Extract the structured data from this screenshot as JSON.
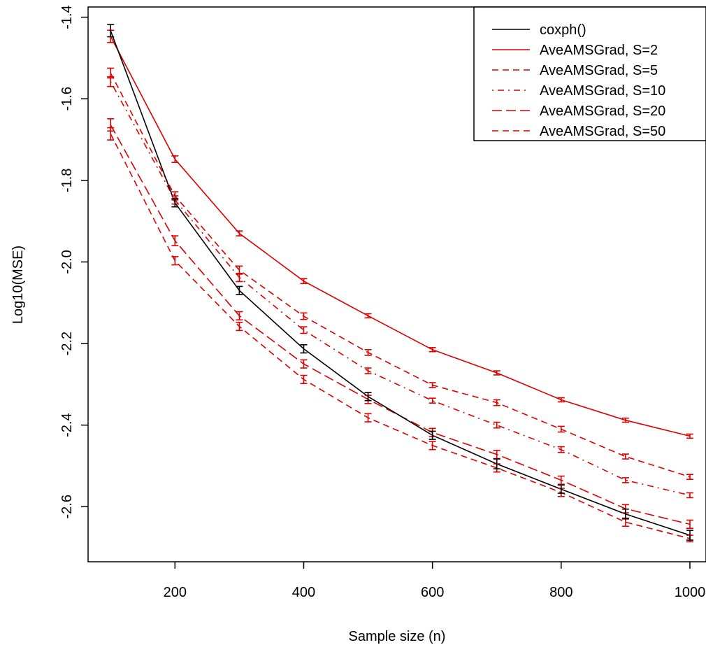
{
  "chart_data": {
    "type": "line",
    "title": "",
    "xlabel": "Sample size (n)",
    "ylabel": "Log10(MSE)",
    "xlim": [
      65,
      1025
    ],
    "ylim": [
      -2.735,
      -1.375
    ],
    "x_ticks": [
      200,
      400,
      600,
      800,
      1000
    ],
    "x_tick_labels": [
      "200",
      "400",
      "600",
      "800",
      "1000"
    ],
    "y_ticks": [
      -1.4,
      -1.6,
      -1.8,
      -2.0,
      -2.2,
      -2.4,
      -2.6
    ],
    "y_tick_labels": [
      "-1.4",
      "-1.6",
      "-1.8",
      "-2.0",
      "-2.2",
      "-2.4",
      "-2.6"
    ],
    "grid": false,
    "legend_position": "top-right",
    "x": [
      100,
      200,
      300,
      400,
      500,
      600,
      700,
      800,
      900,
      1000
    ],
    "series": [
      {
        "name": "coxph()",
        "color": "#000000",
        "dash": "solid",
        "values": [
          -1.433,
          -1.855,
          -2.07,
          -2.213,
          -2.33,
          -2.425,
          -2.495,
          -2.557,
          -2.618,
          -2.67
        ],
        "errors": [
          0.015,
          0.01,
          0.01,
          0.01,
          0.01,
          0.01,
          0.012,
          0.01,
          0.012,
          0.012
        ]
      },
      {
        "name": "AveAMSGrad, S=2",
        "color": "#dd0000",
        "dash": "solid",
        "values": [
          -1.447,
          -1.748,
          -1.93,
          -2.047,
          -2.132,
          -2.215,
          -2.272,
          -2.338,
          -2.388,
          -2.427
        ],
        "errors": [
          0.015,
          0.008,
          0.006,
          0.006,
          0.005,
          0.005,
          0.005,
          0.005,
          0.005,
          0.005
        ]
      },
      {
        "name": "AveAMSGrad, S=5",
        "color": "#dd0000",
        "dash": "dashed",
        "values": [
          -1.537,
          -1.838,
          -2.02,
          -2.133,
          -2.222,
          -2.302,
          -2.345,
          -2.41,
          -2.477,
          -2.527
        ],
        "errors": [
          0.012,
          0.01,
          0.01,
          0.008,
          0.007,
          0.006,
          0.007,
          0.007,
          0.006,
          0.006
        ]
      },
      {
        "name": "AveAMSGrad, S=10",
        "color": "#dd0000",
        "dash": "dotdash",
        "values": [
          -1.558,
          -1.848,
          -2.038,
          -2.167,
          -2.267,
          -2.34,
          -2.4,
          -2.46,
          -2.535,
          -2.572
        ],
        "errors": [
          0.012,
          0.01,
          0.01,
          0.008,
          0.007,
          0.006,
          0.007,
          0.007,
          0.006,
          0.006
        ]
      },
      {
        "name": "AveAMSGrad, S=20",
        "color": "#dd0000",
        "dash": "longdash",
        "values": [
          -1.664,
          -1.948,
          -2.132,
          -2.25,
          -2.337,
          -2.418,
          -2.472,
          -2.535,
          -2.605,
          -2.643
        ],
        "errors": [
          0.015,
          0.012,
          0.01,
          0.01,
          0.01,
          0.01,
          0.01,
          0.01,
          0.01,
          0.01
        ]
      },
      {
        "name": "AveAMSGrad, S=50",
        "color": "#dd0000",
        "dash": "dashed",
        "values": [
          -1.686,
          -1.997,
          -2.158,
          -2.288,
          -2.382,
          -2.45,
          -2.505,
          -2.565,
          -2.638,
          -2.678
        ],
        "errors": [
          0.015,
          0.01,
          0.01,
          0.01,
          0.01,
          0.01,
          0.01,
          0.01,
          0.01,
          0.008
        ]
      }
    ]
  }
}
